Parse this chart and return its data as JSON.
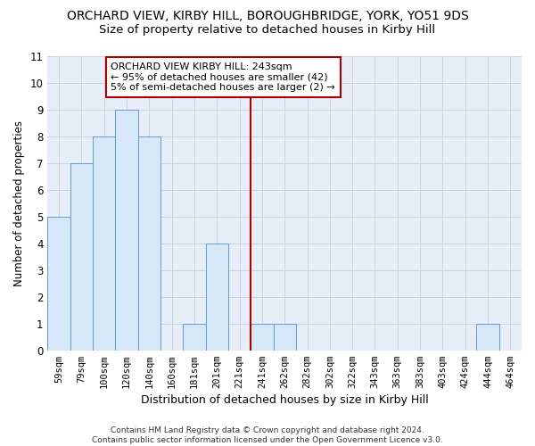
{
  "title1": "ORCHARD VIEW, KIRBY HILL, BOROUGHBRIDGE, YORK, YO51 9DS",
  "title2": "Size of property relative to detached houses in Kirby Hill",
  "xlabel": "Distribution of detached houses by size in Kirby Hill",
  "ylabel": "Number of detached properties",
  "footnote": "Contains HM Land Registry data © Crown copyright and database right 2024.\nContains public sector information licensed under the Open Government Licence v3.0.",
  "bin_labels": [
    "59sqm",
    "79sqm",
    "100sqm",
    "120sqm",
    "140sqm",
    "160sqm",
    "181sqm",
    "201sqm",
    "221sqm",
    "241sqm",
    "262sqm",
    "282sqm",
    "302sqm",
    "322sqm",
    "343sqm",
    "363sqm",
    "383sqm",
    "403sqm",
    "424sqm",
    "444sqm",
    "464sqm"
  ],
  "bar_values": [
    5,
    7,
    8,
    9,
    8,
    0,
    1,
    4,
    0,
    1,
    1,
    0,
    0,
    0,
    0,
    0,
    0,
    0,
    0,
    1,
    0
  ],
  "bar_color": "#d6e8f7",
  "bar_edgecolor": "#6699cc",
  "vline_pos": 8.5,
  "vline_color": "#aa0000",
  "annotation_text": "ORCHARD VIEW KIRBY HILL: 243sqm\n← 95% of detached houses are smaller (42)\n5% of semi-detached houses are larger (2) →",
  "annotation_box_facecolor": "#ffffff",
  "annotation_box_edgecolor": "#aa0000",
  "ylim": [
    0,
    11
  ],
  "yticks": [
    0,
    1,
    2,
    3,
    4,
    5,
    6,
    7,
    8,
    9,
    10,
    11
  ],
  "grid_color": "#c8d4e8",
  "bg_color": "#e8eef8",
  "title1_fontsize": 10,
  "title2_fontsize": 9.5,
  "xlabel_fontsize": 9,
  "ylabel_fontsize": 8.5,
  "tick_fontsize": 7.5,
  "annotation_fontsize": 8,
  "footnote_fontsize": 6.5
}
